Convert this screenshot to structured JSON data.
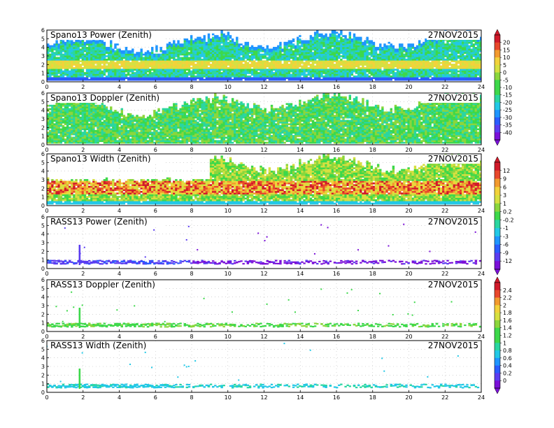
{
  "colors": {
    "scale": [
      "#7b10d8",
      "#5b3cf0",
      "#2a5cff",
      "#1f95ff",
      "#22c8e6",
      "#2ad6a0",
      "#3dd84a",
      "#8bd63c",
      "#d6e040",
      "#f2d23a",
      "#f29a2e",
      "#e8482c",
      "#d11a2a"
    ]
  },
  "chart_data": [
    {
      "type": "heatmap",
      "title": "Spano13 Power (Zenith)",
      "date": "27NOV2015",
      "x_ticks": [
        "0",
        "2",
        "4",
        "6",
        "8",
        "10",
        "12",
        "14",
        "16",
        "18",
        "20",
        "22",
        "24"
      ],
      "y_ticks": [
        "0",
        "1",
        "2",
        "3",
        "4",
        "5",
        "6"
      ],
      "xlim": [
        0,
        24
      ],
      "ylim": [
        0,
        6
      ],
      "profile": "power",
      "colorbar": "power_scale"
    },
    {
      "type": "heatmap",
      "title": "Spano13 Doppler (Zenith)",
      "date": "27NOV2015",
      "x_ticks": [
        "0",
        "2",
        "4",
        "6",
        "8",
        "10",
        "12",
        "14",
        "16",
        "18",
        "20",
        "22",
        "24"
      ],
      "y_ticks": [
        "0",
        "1",
        "2",
        "3",
        "4",
        "5",
        "6"
      ],
      "xlim": [
        0,
        24
      ],
      "ylim": [
        0,
        6
      ],
      "profile": "doppler",
      "colorbar": "power_scale"
    },
    {
      "type": "heatmap",
      "title": "Spano13 Width (Zenith)",
      "date": "27NOV2015",
      "x_ticks": [
        "0",
        "2",
        "4",
        "6",
        "8",
        "10",
        "12",
        "14",
        "16",
        "18",
        "20",
        "22",
        "24"
      ],
      "y_ticks": [
        "0",
        "1",
        "2",
        "3",
        "4",
        "5",
        "6"
      ],
      "xlim": [
        0,
        24
      ],
      "ylim": [
        0,
        6
      ],
      "profile": "width",
      "colorbar": "width_scale"
    },
    {
      "type": "heatmap",
      "title": "RASS13 Power (Zenith)",
      "date": "27NOV2015",
      "x_ticks": [
        "0",
        "2",
        "4",
        "6",
        "8",
        "10",
        "12",
        "14",
        "16",
        "18",
        "20",
        "22",
        "24"
      ],
      "y_ticks": [
        "0",
        "1",
        "2",
        "3",
        "4",
        "5",
        "6"
      ],
      "xlim": [
        0,
        24
      ],
      "ylim": [
        0,
        6
      ],
      "profile": "rass_power",
      "colorbar": "width_scale"
    },
    {
      "type": "heatmap",
      "title": "RASS13 Doppler (Zenith)",
      "date": "27NOV2015",
      "x_ticks": [
        "0",
        "2",
        "4",
        "6",
        "8",
        "10",
        "12",
        "14",
        "16",
        "18",
        "20",
        "22",
        "24"
      ],
      "y_ticks": [
        "0",
        "1",
        "2",
        "3",
        "4",
        "5",
        "6"
      ],
      "xlim": [
        0,
        24
      ],
      "ylim": [
        0,
        6
      ],
      "profile": "rass_doppler",
      "colorbar": "rass_scale"
    },
    {
      "type": "heatmap",
      "title": "RASS13 Width (Zenith)",
      "date": "27NOV2015",
      "x_ticks": [
        "0",
        "2",
        "4",
        "6",
        "8",
        "10",
        "12",
        "14",
        "16",
        "18",
        "20",
        "22",
        "24"
      ],
      "y_ticks": [
        "0",
        "1",
        "2",
        "3",
        "4",
        "5",
        "6"
      ],
      "xlim": [
        0,
        24
      ],
      "ylim": [
        0,
        6
      ],
      "profile": "rass_width",
      "colorbar": "rass_scale"
    }
  ],
  "colorbars": {
    "power_scale": [
      "20",
      "15",
      "10",
      "5",
      "0",
      "-5",
      "-10",
      "-15",
      "-20",
      "-25",
      "-30",
      "-35",
      "-40"
    ],
    "width_scale": [
      "12",
      "9",
      "6",
      "3",
      "1",
      "0.2",
      "-0.2",
      "-1",
      "-3",
      "-6",
      "-9",
      "-12"
    ],
    "rass_scale": [
      "2.4",
      "2.2",
      "2",
      "1.8",
      "1.6",
      "1.4",
      "1.2",
      "1",
      "0.8",
      "0.6",
      "0.4",
      "0.2",
      "0"
    ]
  }
}
